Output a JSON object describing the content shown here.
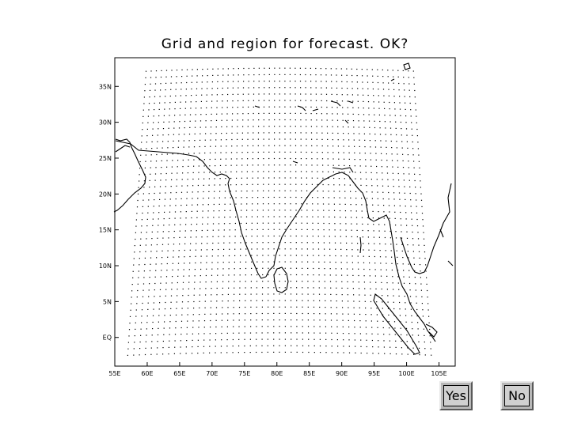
{
  "title": "Grid and region for forecast. OK?",
  "map": {
    "lon_range": [
      55,
      107.5
    ],
    "lat_range": [
      -4,
      39
    ],
    "grid": {
      "lon_range": [
        57,
        104.5
      ],
      "lat_range": [
        -2.5,
        37.5
      ],
      "spacing": 0.9
    },
    "x_ticks": [
      "55E",
      "60E",
      "65E",
      "70E",
      "75E",
      "80E",
      "85E",
      "90E",
      "95E",
      "100E",
      "105E"
    ],
    "x_tick_values": [
      55,
      60,
      65,
      70,
      75,
      80,
      85,
      90,
      95,
      100,
      105
    ],
    "y_ticks": [
      "EQ",
      "5N",
      "10N",
      "15N",
      "20N",
      "25N",
      "30N",
      "35N"
    ],
    "y_tick_values": [
      0,
      5,
      10,
      15,
      20,
      25,
      30,
      35
    ]
  },
  "buttons": {
    "yes": "Yes",
    "no": "No"
  }
}
